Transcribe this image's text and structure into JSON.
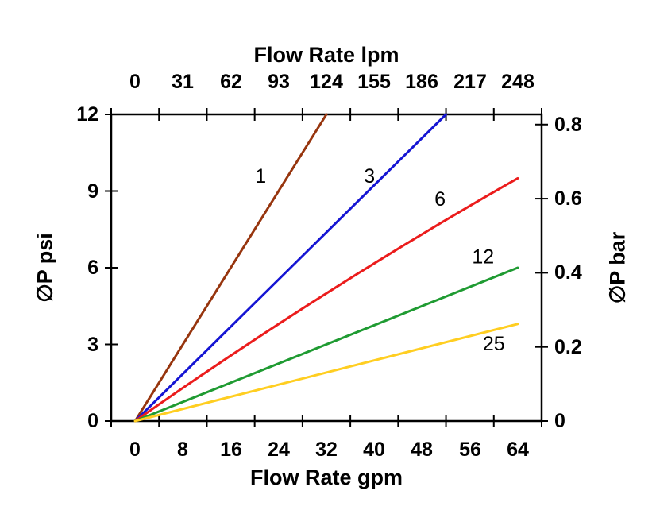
{
  "axes": {
    "top": {
      "title": "Flow Rate lpm",
      "ticks": [
        "0",
        "31",
        "62",
        "93",
        "124",
        "155",
        "186",
        "217",
        "248"
      ]
    },
    "bottom": {
      "title": "Flow Rate gpm",
      "ticks": [
        "0",
        "8",
        "16",
        "24",
        "32",
        "40",
        "48",
        "56",
        "64"
      ]
    },
    "left": {
      "title": "∅P psi",
      "ticks": [
        "0",
        "3",
        "6",
        "9",
        "12"
      ]
    },
    "right": {
      "title": "∅P bar",
      "ticks": [
        "0",
        "0.2",
        "0.4",
        "0.6",
        "0.8"
      ]
    }
  },
  "chart_data": {
    "type": "line",
    "title": "",
    "x_axis": {
      "bottom_label": "Flow Rate gpm",
      "top_label": "Flow Rate lpm",
      "gpm_range": [
        0,
        64
      ],
      "lpm_range": [
        0,
        248
      ]
    },
    "y_axis": {
      "left_label": "∅P psi",
      "right_label": "∅P bar",
      "psi_range": [
        0,
        12
      ],
      "bar_range": [
        0,
        0.8
      ]
    },
    "grid": false,
    "legend": "inline-labels",
    "psi_per_bar": 14.5038,
    "series": [
      {
        "label": "1",
        "color": "#97350E",
        "points_gpm_psi": [
          [
            0,
            0
          ],
          [
            32,
            12
          ]
        ],
        "label_pos_gpm_psi": [
          21,
          9.6
        ]
      },
      {
        "label": "3",
        "color": "#1515D3",
        "points_gpm_psi": [
          [
            0,
            0
          ],
          [
            52,
            12
          ]
        ],
        "label_pos_gpm_psi": [
          39.2,
          9.6
        ]
      },
      {
        "label": "6",
        "color": "#EB1C1C",
        "points_gpm_psi": [
          [
            0,
            0
          ],
          [
            32,
            5.0
          ],
          [
            64,
            9.5
          ]
        ],
        "label_pos_gpm_psi": [
          51,
          8.7
        ]
      },
      {
        "label": "12",
        "color": "#1F9B32",
        "points_gpm_psi": [
          [
            0,
            0
          ],
          [
            64,
            6.0
          ]
        ],
        "label_pos_gpm_psi": [
          58.2,
          6.45
        ]
      },
      {
        "label": "25",
        "color": "#FFCE21",
        "points_gpm_psi": [
          [
            0,
            0
          ],
          [
            64,
            3.8
          ]
        ],
        "label_pos_gpm_psi": [
          60,
          3.05
        ]
      }
    ]
  }
}
